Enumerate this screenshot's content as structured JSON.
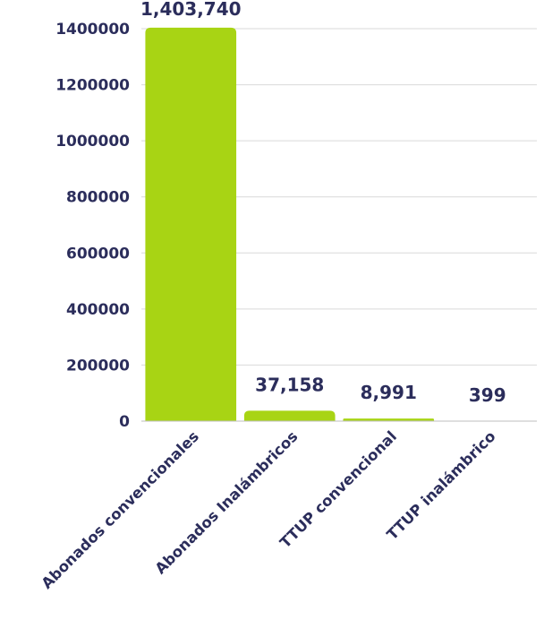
{
  "chart_data": {
    "type": "bar",
    "title": "",
    "xlabel": "",
    "ylabel": "",
    "categories": [
      "Abonados convencionales",
      "Abonados Inalámbricos",
      "TTUP convencional",
      "TTUP inalámbrico"
    ],
    "values": [
      1403740,
      37158,
      8991,
      399
    ],
    "data_labels": [
      "1,403,740",
      "37,158",
      "8,991",
      "399"
    ],
    "yticks": [
      0,
      200000,
      400000,
      600000,
      800000,
      1000000,
      1200000,
      1400000
    ],
    "ylim": [
      0,
      1400000
    ],
    "grid": true,
    "legend": "none",
    "colors": {
      "bar": "#a8d414",
      "text": "#2b2d5b",
      "grid": "#d9d9d9",
      "axis": "#bfbfbf"
    }
  }
}
